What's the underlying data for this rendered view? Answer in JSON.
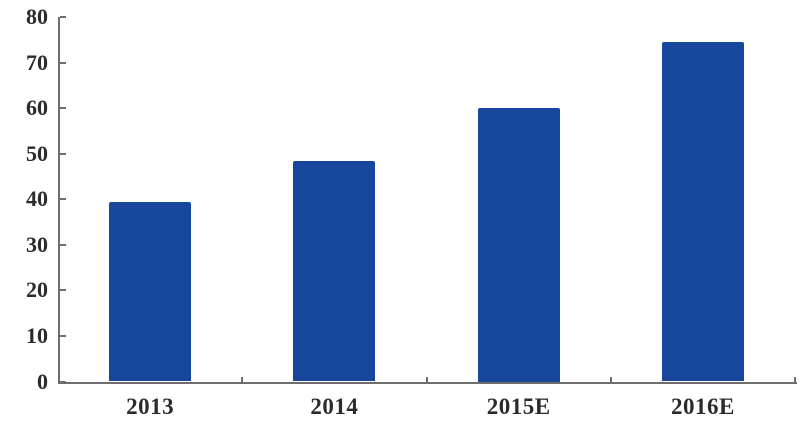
{
  "chart_data": {
    "type": "bar",
    "title": "",
    "xlabel": "",
    "ylabel": "",
    "categories": [
      "2013",
      "2014",
      "2015E",
      "2016E"
    ],
    "values": [
      39.3,
      48.5,
      60,
      74.5
    ],
    "ylim": [
      0,
      80
    ],
    "yticks": [
      0,
      10,
      20,
      30,
      40,
      50,
      60,
      70,
      80
    ],
    "grid": false,
    "legend": null,
    "series_name": ""
  },
  "colors": {
    "bar": "#17479d",
    "axis": "#6e6e6e",
    "text": "#2b2b2b",
    "background": "#ffffff"
  }
}
